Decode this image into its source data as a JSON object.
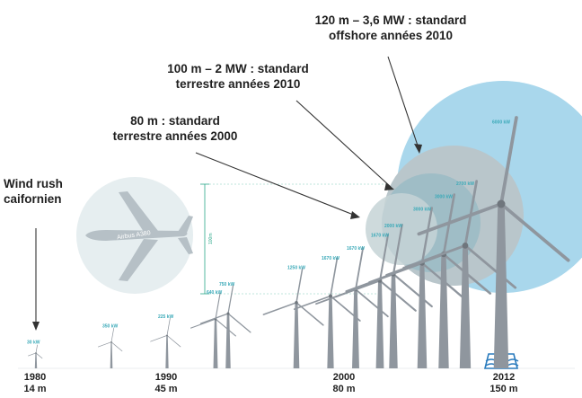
{
  "annotations": {
    "wind_rush": [
      "Wind rush",
      "caifornien"
    ],
    "std_80": [
      "80 m : standard",
      "terrestre années 2000"
    ],
    "std_100": [
      "100 m – 2 MW : standard",
      "terrestre années 2010"
    ],
    "std_120": [
      "120 m – 3,6 MW : standard",
      "offshore années 2010"
    ]
  },
  "airplane_label": "Airbus A380",
  "height_marker": "100m",
  "timeline": [
    {
      "year": "1980",
      "diameter": "14 m"
    },
    {
      "year": "1990",
      "diameter": "45 m"
    },
    {
      "year": "2000",
      "diameter": "80 m"
    },
    {
      "year": "2012",
      "diameter": "150 m"
    }
  ],
  "turbines": [
    {
      "power": "30 kW",
      "rotor_m": 14
    },
    {
      "power": "350 kW",
      "rotor_m": 24
    },
    {
      "power": "225 kW",
      "rotor_m": 30
    },
    {
      "power": "640 kW",
      "rotor_m": 45
    },
    {
      "power": "750 kW",
      "rotor_m": 50
    },
    {
      "power": "1250 kW",
      "rotor_m": 60
    },
    {
      "power": "1670 kW",
      "rotor_m": 66
    },
    {
      "power": "1670 kW",
      "rotor_m": 72
    },
    {
      "power": "1670 kW",
      "rotor_m": 80
    },
    {
      "power": "2000 kW",
      "rotor_m": 86
    },
    {
      "power": "3000 kW",
      "rotor_m": 96
    },
    {
      "power": "3000 kW",
      "rotor_m": 104
    },
    {
      "power": "2700 kW",
      "rotor_m": 112
    },
    {
      "power": "6000 kW",
      "rotor_m": 150
    }
  ],
  "colors": {
    "turbine": "#8f969e",
    "sky_large": "#a9d7ec",
    "sky_mid": "#9fbdc6",
    "sky_small": "#d0d6d9",
    "power_label": "#3aa9b8",
    "height_marker": "#2aa88a",
    "water": "#2a7bbd"
  }
}
